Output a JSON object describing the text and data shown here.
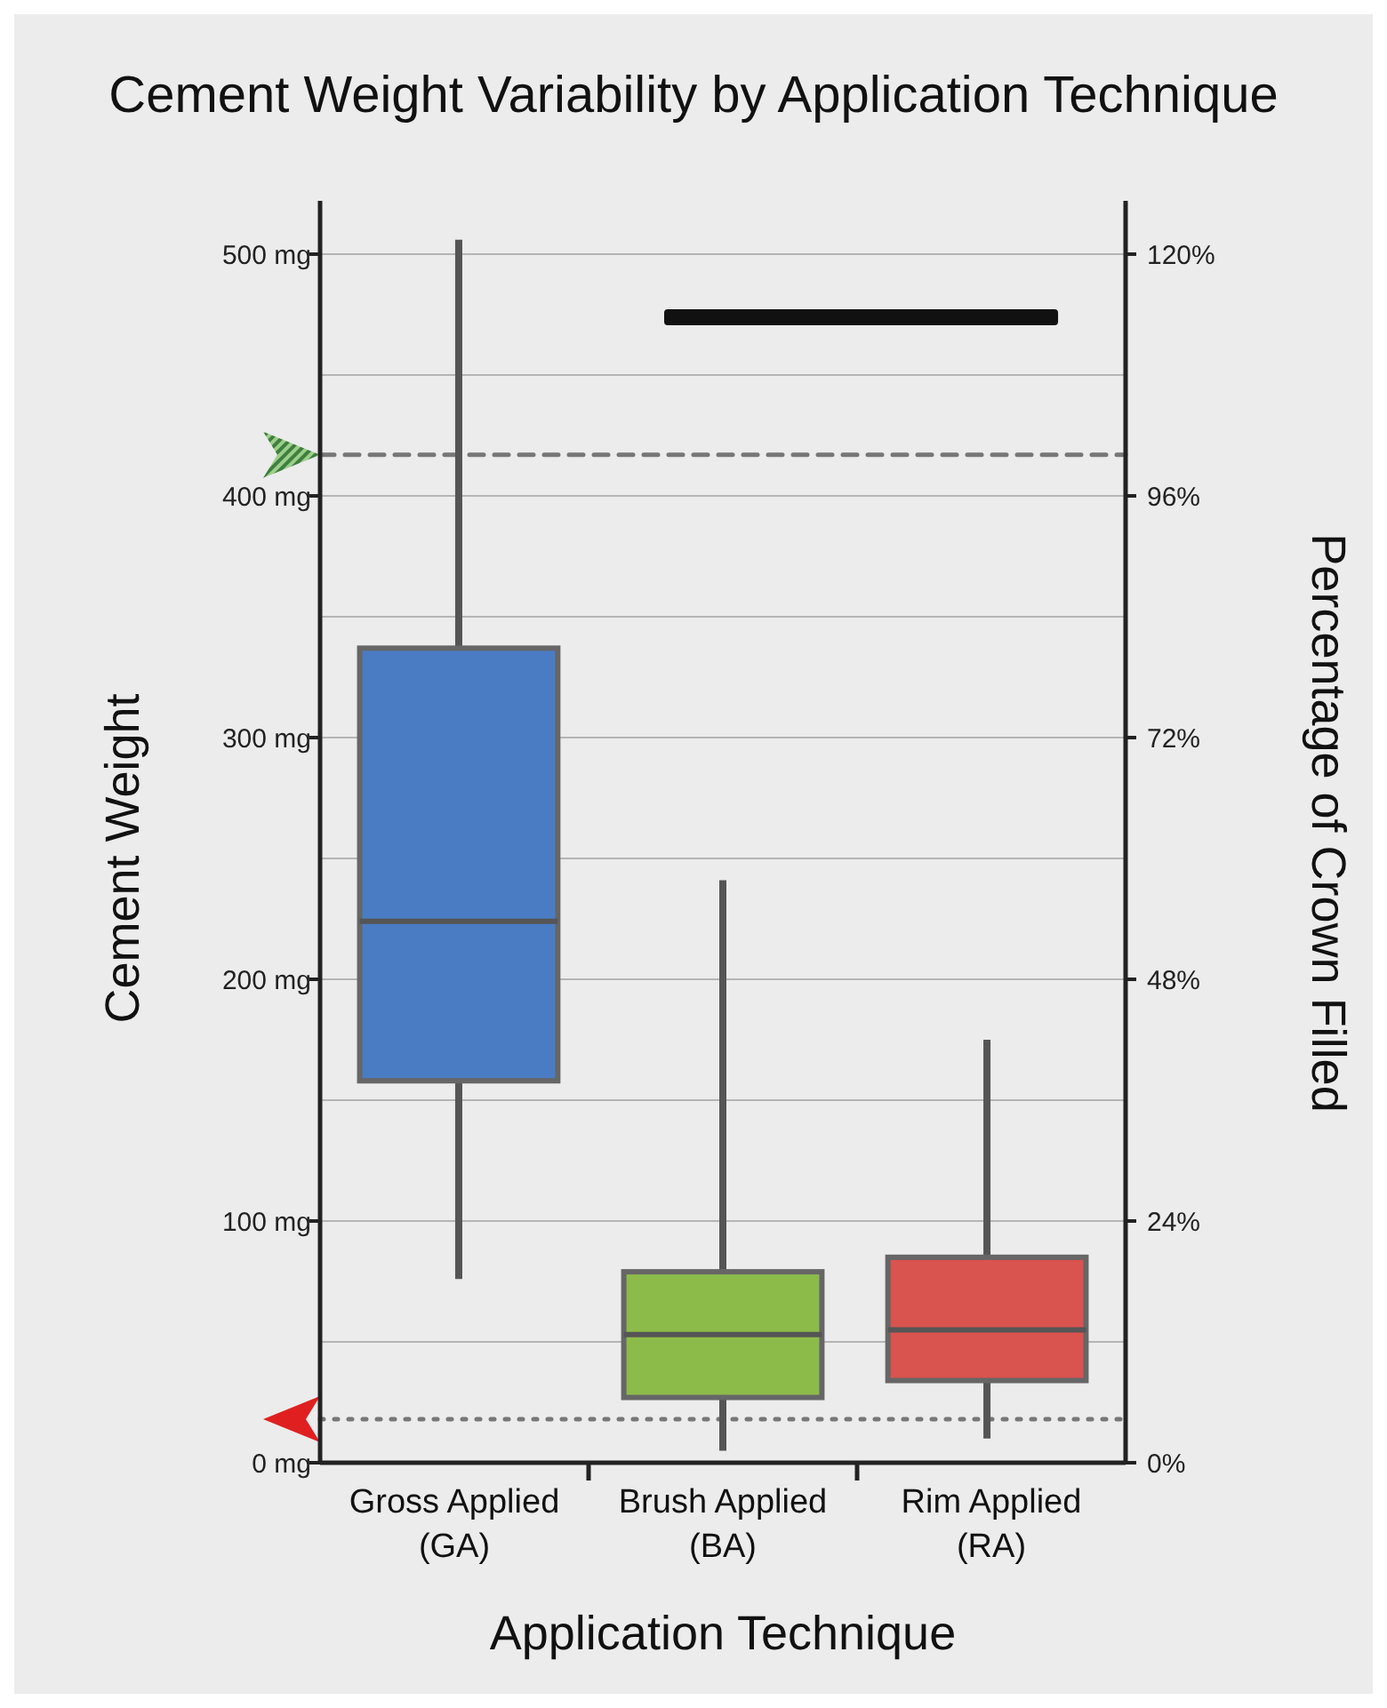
{
  "chart_data": {
    "type": "box",
    "title": "Cement Weight Variability by Application Technique",
    "xlabel": "Application Technique",
    "ylabel": "Cement Weight",
    "y2label": "Percentage of Crown Filled",
    "categories": [
      "Gross Applied (GA)",
      "Brush Applied (BA)",
      "Rim Applied (RA)"
    ],
    "boxes": [
      {
        "low": 76,
        "q1": 158,
        "median": 224,
        "q3": 337,
        "high": 506
      },
      {
        "low": 5,
        "q1": 27,
        "median": 53,
        "q3": 79,
        "high": 241
      },
      {
        "low": 10,
        "q1": 34,
        "median": 55,
        "q3": 85,
        "high": 175
      }
    ],
    "colors": [
      "#4a7cc4",
      "#8cbb4a",
      "#d9534f"
    ],
    "ylim": [
      0,
      500
    ],
    "yticks": [
      {
        "value": 0,
        "label": "0 mg"
      },
      {
        "value": 50,
        "label": null
      },
      {
        "value": 100,
        "label": "100 mg"
      },
      {
        "value": 150,
        "label": null
      },
      {
        "value": 200,
        "label": "200 mg"
      },
      {
        "value": 250,
        "label": null
      },
      {
        "value": 300,
        "label": "300 mg"
      },
      {
        "value": 350,
        "label": null
      },
      {
        "value": 400,
        "label": "400 mg"
      },
      {
        "value": 450,
        "label": null
      },
      {
        "value": 500,
        "label": "500 mg"
      }
    ],
    "y2lim": [
      0,
      120
    ],
    "y2ticks": [
      {
        "value": 0,
        "label": "0%"
      },
      {
        "value": 24,
        "label": "24%"
      },
      {
        "value": 48,
        "label": "48%"
      },
      {
        "value": 72,
        "label": "72%"
      },
      {
        "value": 96,
        "label": "96%"
      },
      {
        "value": 120,
        "label": "120%"
      }
    ],
    "grid": "y",
    "ref_lines": [
      {
        "axis": "y",
        "value": 417,
        "color": "#777777",
        "line_style": "dashed"
      },
      {
        "axis": "y",
        "value": 18,
        "color": "#777777",
        "line_style": "dotted"
      }
    ]
  }
}
